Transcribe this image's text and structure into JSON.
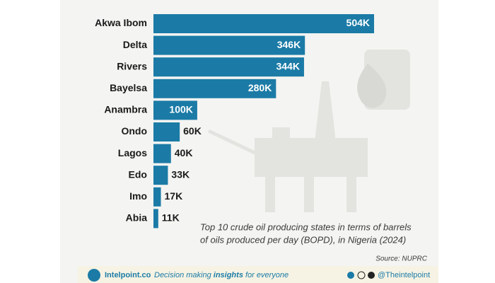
{
  "chart_data": {
    "type": "bar",
    "orientation": "horizontal",
    "categories": [
      "Akwa Ibom",
      "Delta",
      "Rivers",
      "Bayelsa",
      "Anambra",
      "Ondo",
      "Lagos",
      "Edo",
      "Imo",
      "Abia"
    ],
    "values": [
      504000,
      346000,
      344000,
      280000,
      100000,
      60000,
      40000,
      33000,
      17000,
      11000
    ],
    "value_labels": [
      "504K",
      "346K",
      "344K",
      "280K",
      "100K",
      "60K",
      "40K",
      "33K",
      "17K",
      "11K"
    ],
    "color": "#1b7ba6",
    "caption": [
      "Top 10 crude oil producing states in terms of barrels",
      "of oils produced per day (BOPD), in Nigeria (2024)"
    ],
    "source": "Source: NUPRC"
  },
  "footer": {
    "brand": "Intelpoint.co",
    "tagline": [
      "Decision making ",
      "insights",
      " for everyone"
    ],
    "handle": "@Theintelpoint"
  }
}
